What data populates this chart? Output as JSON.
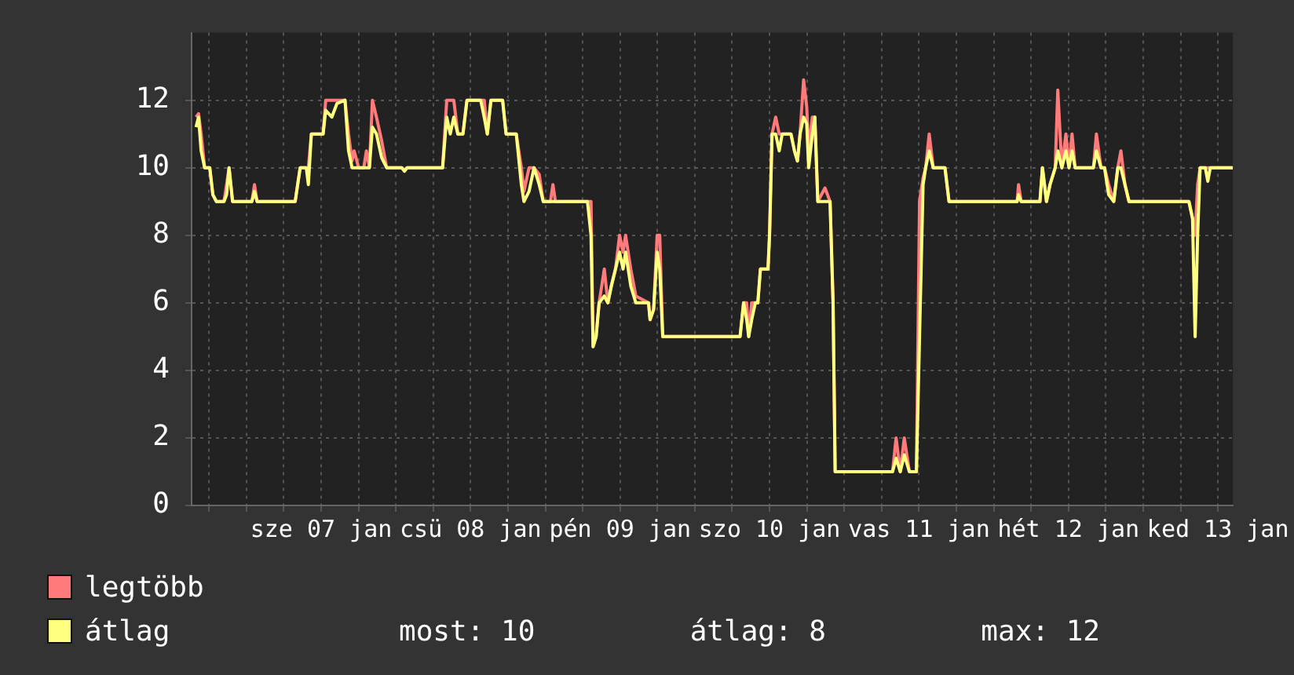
{
  "chart_data": {
    "type": "line",
    "x": [
      "--01-06T15:55",
      "--01-06T16:19",
      "--01-06T16:44",
      "--01-06T17:18",
      "--01-06T18:07",
      "--01-06T18:37",
      "--01-06T19:11",
      "--01-06T20:24",
      "--01-06T20:49",
      "--01-06T21:13",
      "--01-06T21:47",
      "--01-07T00:53",
      "--01-07T01:18",
      "--01-07T01:43",
      "--01-07T07:50",
      "--01-07T08:38",
      "--01-07T09:37",
      "--01-07T09:57",
      "--01-07T10:26",
      "--01-07T12:19",
      "--01-07T12:44",
      "--01-07T13:43",
      "--01-07T14:32",
      "--01-07T15:50",
      "--01-07T16:24",
      "--01-07T16:58",
      "--01-07T17:18",
      "--01-07T18:02",
      "--01-07T18:51",
      "--01-07T19:16",
      "--01-07T19:45",
      "--01-07T20:14",
      "--01-07T20:53",
      "--01-07T21:43",
      "--01-07T22:31",
      "--01-08T00:58",
      "--01-08T01:23",
      "--01-08T01:47",
      "--01-08T07:30",
      "--01-08T08:10",
      "--01-08T08:44",
      "--01-08T09:18",
      "--01-08T09:57",
      "--01-08T10:46",
      "--01-08T11:25",
      "--01-08T13:37",
      "--01-08T14:11",
      "--01-08T14:41",
      "--01-08T15:16",
      "--01-08T17:08",
      "--01-08T17:42",
      "--01-08T19:20",
      "--01-08T20:09",
      "--01-08T20:34",
      "--01-08T21:23",
      "--01-08T22:11",
      "--01-08T23:01",
      "--01-08T23:40",
      "--01-09T00:49",
      "--01-09T01:13",
      "--01-09T01:37",
      "--01-09T06:46",
      "--01-09T07:20",
      "--01-09T07:40",
      "--01-09T08:09",
      "--01-09T08:38",
      "--01-09T09:28",
      "--01-09T10:02",
      "--01-09T10:36",
      "--01-09T11:16",
      "--01-09T11:55",
      "--01-09T12:29",
      "--01-09T12:53",
      "--01-09T13:43",
      "--01-09T14:32",
      "--01-09T16:34",
      "--01-09T16:49",
      "--01-09T17:23",
      "--01-09T17:57",
      "--01-09T18:22",
      "--01-09T18:51",
      "--01-10T01:58",
      "--01-10T07:16",
      "--01-10T07:50",
      "--01-10T08:20",
      "--01-10T08:39",
      "--01-10T09:08",
      "--01-10T09:43",
      "--01-10T10:07",
      "--01-10T10:32",
      "--01-10T11:45",
      "--01-10T12:00",
      "--01-10T12:24",
      "--01-10T12:59",
      "--01-10T13:33",
      "--01-10T14:02",
      "--01-10T15:26",
      "--01-10T16:00",
      "--01-10T16:29",
      "--01-10T16:54",
      "--01-10T17:28",
      "--01-10T17:58",
      "--01-10T18:17",
      "--01-10T18:52",
      "--01-10T19:16",
      "--01-10T19:45",
      "--01-10T20:54",
      "--01-10T21:43",
      "--01-10T22:12",
      "--01-10T22:32",
      "--01-11T07:45",
      "--01-11T08:19",
      "--01-11T08:59",
      "--01-11T09:38",
      "--01-11T10:27",
      "--01-11T11:35",
      "--01-11T12:05",
      "--01-11T12:39",
      "--01-11T13:04",
      "--01-11T13:38",
      "--01-11T14:17",
      "--01-11T16:10",
      "--01-11T16:49",
      "--01-12T03:45",
      "--01-12T03:59",
      "--01-12T04:24",
      "--01-12T07:25",
      "--01-12T07:49",
      "--01-12T08:28",
      "--01-12T09:02",
      "--01-12T09:52",
      "--01-12T10:17",
      "--01-12T10:56",
      "--01-12T11:35",
      "--01-12T12:05",
      "--01-12T12:34",
      "--01-12T13:04",
      "--01-12T16:00",
      "--01-12T16:29",
      "--01-12T17:13",
      "--01-12T17:47",
      "--01-12T18:27",
      "--01-12T19:16",
      "--01-12T19:55",
      "--01-12T20:25",
      "--01-12T21:04",
      "--01-12T21:43",
      "--01-13T07:20",
      "--01-13T07:55",
      "--01-13T08:20",
      "--01-13T08:44",
      "--01-13T09:08",
      "--01-13T09:58",
      "--01-13T10:22",
      "--01-13T10:46",
      "--01-13T14:24"
    ],
    "series": [
      {
        "name": "legtöbb",
        "color": "#ff7b7b",
        "values": [
          11.5,
          11.6,
          11,
          10,
          10,
          9.2,
          9,
          9,
          9.5,
          10,
          9,
          9,
          9.5,
          9,
          9,
          10,
          10,
          10,
          11,
          11,
          12,
          12,
          12,
          12,
          11,
          10.2,
          10.5,
          10,
          10,
          10.5,
          10,
          12,
          11.5,
          10.8,
          10,
          10,
          9.9,
          10,
          10,
          12,
          12,
          12,
          11,
          11,
          12,
          12,
          12,
          11,
          12,
          12,
          11,
          11,
          10,
          9.3,
          10,
          10,
          9.8,
          9,
          9,
          9.5,
          9,
          9,
          9,
          4.7,
          5,
          6,
          7,
          6,
          6.5,
          7,
          8,
          7.5,
          8,
          7,
          6.2,
          6,
          5.5,
          5.8,
          8,
          8,
          5,
          5,
          5,
          6,
          6,
          5,
          6,
          6,
          6,
          7,
          7,
          8,
          11,
          11.5,
          11,
          11,
          11,
          10.5,
          10.2,
          11,
          12.6,
          11.8,
          10.5,
          11.5,
          11.5,
          9,
          9.4,
          9,
          6,
          1,
          1,
          2,
          1,
          2,
          1,
          1,
          9,
          9.7,
          10,
          11,
          10,
          10,
          9,
          9,
          9.5,
          9,
          9,
          10,
          9,
          9.5,
          10,
          12.3,
          10,
          11,
          10,
          11,
          10,
          10,
          11,
          10,
          10,
          9.5,
          9,
          10,
          10.5,
          9.5,
          9,
          9,
          8.5,
          8,
          9.5,
          10,
          10,
          10,
          10,
          10
        ]
      },
      {
        "name": "átlag",
        "color": "#ffff80",
        "values": [
          11.2,
          11.5,
          10.5,
          10,
          10,
          9.2,
          9,
          9,
          9.2,
          10,
          9,
          9,
          9.3,
          9,
          9,
          10,
          10,
          9.5,
          11,
          11,
          11.7,
          11.5,
          11.9,
          12,
          10.5,
          10,
          10,
          10,
          10,
          10,
          10,
          11.2,
          11,
          10.3,
          10,
          10,
          9.9,
          10,
          10,
          11.5,
          11,
          11.5,
          11,
          11,
          12,
          12,
          11.5,
          11,
          12,
          12,
          11,
          11,
          9.5,
          9,
          9.3,
          10,
          9.5,
          9,
          9,
          9,
          9,
          9,
          8,
          4.7,
          5,
          6,
          6.2,
          6,
          6.5,
          7,
          7.5,
          7,
          7.5,
          6.5,
          6,
          6,
          5.5,
          5.8,
          7.5,
          7,
          5,
          5,
          5,
          6,
          5.5,
          5,
          5.5,
          6,
          6,
          7,
          7,
          8,
          11,
          11,
          10.5,
          11,
          11,
          10.5,
          10.2,
          11,
          11.5,
          11.3,
          10,
          11,
          11.5,
          9,
          9,
          9,
          6,
          1,
          1,
          1.4,
          1,
          1.5,
          1,
          1,
          5,
          9.5,
          10,
          10.5,
          10,
          10,
          9,
          9,
          9.2,
          9,
          9,
          10,
          9,
          9.5,
          10,
          10.5,
          10,
          10.5,
          10,
          10.5,
          10,
          10,
          10.5,
          10,
          10,
          9.2,
          9,
          10,
          10,
          9.5,
          9,
          9,
          8.5,
          5,
          8,
          10,
          10,
          9.6,
          10,
          10
        ]
      }
    ],
    "xlim": [
      "--01-06T15:12",
      "--01-13T14:24"
    ],
    "xticks": [
      {
        "value": "--01-06T18:00",
        "label": null
      },
      {
        "value": "--01-07T00:00",
        "label": null
      },
      {
        "value": "--01-07T06:00",
        "label": null
      },
      {
        "value": "--01-07T12:00",
        "label": "sze 07 jan"
      },
      {
        "value": "--01-07T18:00",
        "label": null
      },
      {
        "value": "--01-08T00:00",
        "label": null
      },
      {
        "value": "--01-08T06:00",
        "label": null
      },
      {
        "value": "--01-08T12:00",
        "label": "csü 08 jan"
      },
      {
        "value": "--01-08T18:00",
        "label": null
      },
      {
        "value": "--01-09T00:00",
        "label": null
      },
      {
        "value": "--01-09T06:00",
        "label": null
      },
      {
        "value": "--01-09T12:00",
        "label": "pén 09 jan"
      },
      {
        "value": "--01-09T18:00",
        "label": null
      },
      {
        "value": "--01-10T00:00",
        "label": null
      },
      {
        "value": "--01-10T06:00",
        "label": null
      },
      {
        "value": "--01-10T12:00",
        "label": "szo 10 jan"
      },
      {
        "value": "--01-10T18:00",
        "label": null
      },
      {
        "value": "--01-11T00:00",
        "label": null
      },
      {
        "value": "--01-11T06:00",
        "label": null
      },
      {
        "value": "--01-11T12:00",
        "label": "vas 11 jan"
      },
      {
        "value": "--01-11T18:00",
        "label": null
      },
      {
        "value": "--01-12T00:00",
        "label": null
      },
      {
        "value": "--01-12T06:00",
        "label": null
      },
      {
        "value": "--01-12T12:00",
        "label": "hét 12 jan"
      },
      {
        "value": "--01-12T18:00",
        "label": null
      },
      {
        "value": "--01-13T00:00",
        "label": null
      },
      {
        "value": "--01-13T06:00",
        "label": null
      },
      {
        "value": "--01-13T12:00",
        "label": "ked 13 jan"
      }
    ],
    "ylim": [
      0,
      14
    ],
    "yticks": [
      0,
      2,
      4,
      6,
      8,
      10,
      12
    ],
    "grid": true,
    "legend": "bottom left",
    "marker": "none",
    "line_style": "solid",
    "annotations": [
      "most: 10",
      "átlag: 8",
      "max: 12"
    ]
  }
}
